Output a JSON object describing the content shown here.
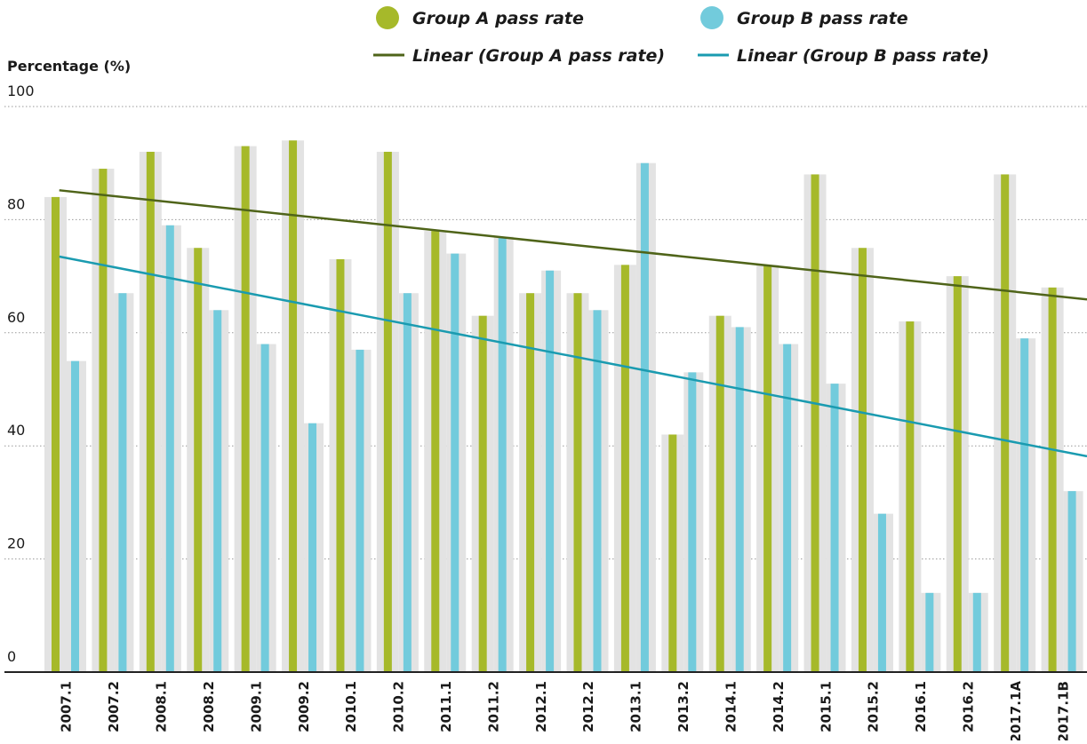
{
  "chart_data": {
    "type": "bar",
    "y_label": "Percentage (%)",
    "categories": [
      "2007.1",
      "2007.2",
      "2008.1",
      "2008.2",
      "2009.1",
      "2009.2",
      "2010.1",
      "2010.2",
      "2011.1",
      "2011.2",
      "2012.1",
      "2012.2",
      "2013.1",
      "2013.2",
      "2014.1",
      "2014.2",
      "2015.1",
      "2015.2",
      "2016.1",
      "2016.2",
      "2017.1A",
      "2017.1B"
    ],
    "series": [
      {
        "name": "Group A pass rate",
        "color": "#a6b92a",
        "values": [
          84,
          89,
          92,
          75,
          93,
          94,
          73,
          92,
          78,
          63,
          67,
          67,
          72,
          42,
          63,
          72,
          88,
          75,
          62,
          70,
          88,
          68
        ]
      },
      {
        "name": "Group B pass rate",
        "color": "#72cbdc",
        "values": [
          55,
          67,
          79,
          64,
          58,
          44,
          57,
          67,
          74,
          77,
          71,
          64,
          90,
          53,
          61,
          58,
          51,
          28,
          14,
          14,
          59,
          32
        ]
      }
    ],
    "trendlines": [
      {
        "name": "Linear (Group A pass rate)",
        "series": 0,
        "kind": "linear",
        "color": "#4f6419"
      },
      {
        "name": "Linear (Group B pass rate)",
        "series": 1,
        "kind": "linear",
        "color": "#1a9bb0"
      }
    ],
    "ylim": [
      0,
      100
    ],
    "yticks": [
      0,
      20,
      40,
      60,
      80,
      100
    ],
    "grid": true
  }
}
